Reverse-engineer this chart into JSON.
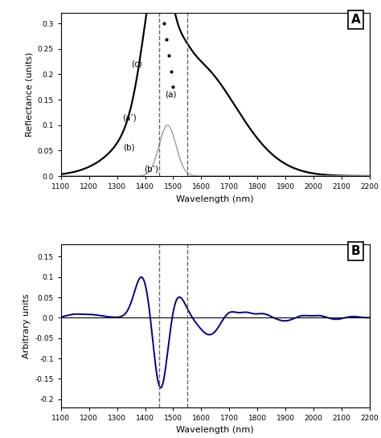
{
  "xlim": [
    1100,
    2200
  ],
  "dashed_lines": [
    1450,
    1550
  ],
  "panel_A": {
    "ylabel": "Reflectance (units)",
    "xlabel": "Wavelength (nm)",
    "ylim": [
      0,
      0.32
    ],
    "yticks": [
      0.0,
      0.05,
      0.1,
      0.15,
      0.2,
      0.25,
      0.3
    ],
    "label": "A",
    "label_c": "(c)",
    "label_a": "(a)",
    "label_a2": "(a’)",
    "label_b": "(b)",
    "label_b2": "(b’)"
  },
  "panel_B": {
    "ylabel": "Arbitrary units",
    "xlabel": "Wavelength (nm)",
    "ylim": [
      -0.22,
      0.18
    ],
    "yticks": [
      -0.2,
      -0.15,
      -0.1,
      -0.05,
      0.0,
      0.05,
      0.1,
      0.15
    ],
    "label": "B"
  },
  "xticks": [
    1100,
    1200,
    1300,
    1400,
    1500,
    1600,
    1700,
    1800,
    1900,
    2000,
    2100,
    2200
  ],
  "colors": {
    "black_curve": "#000000",
    "gray_curve": "#aaaaaa",
    "blue_curve": "#00008B",
    "dashed_line": "#666666"
  }
}
